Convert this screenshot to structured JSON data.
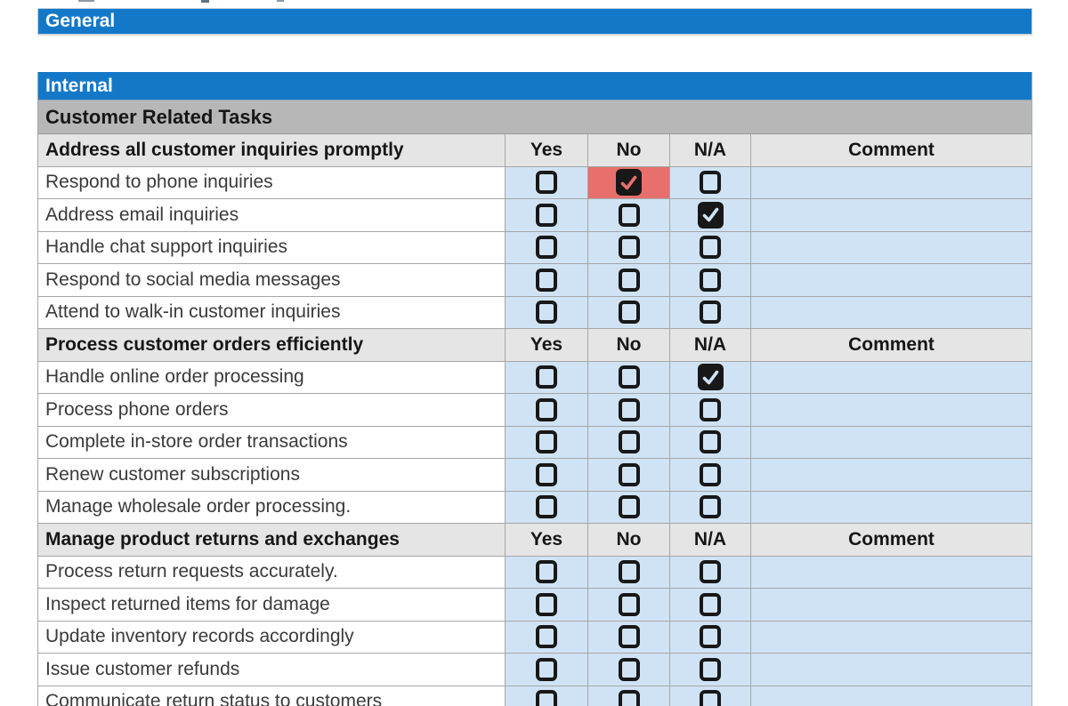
{
  "banners": {
    "general": "General",
    "internal": "Internal"
  },
  "section": {
    "subtitle": "Customer Related Tasks",
    "column_headers": {
      "yes": "Yes",
      "no": "No",
      "na": "N/A",
      "comment": "Comment"
    },
    "groups": [
      {
        "header": "Address all customer inquiries promptly",
        "tasks": [
          {
            "label": "Respond to phone inquiries",
            "checks": {
              "yes": false,
              "no": true,
              "na": false
            },
            "highlight": "no",
            "comment": ""
          },
          {
            "label": "Address email inquiries",
            "checks": {
              "yes": false,
              "no": false,
              "na": true
            },
            "highlight": null,
            "comment": ""
          },
          {
            "label": "Handle chat support inquiries",
            "checks": {
              "yes": false,
              "no": false,
              "na": false
            },
            "highlight": null,
            "comment": ""
          },
          {
            "label": "Respond to social media messages",
            "checks": {
              "yes": false,
              "no": false,
              "na": false
            },
            "highlight": null,
            "comment": ""
          },
          {
            "label": "Attend to walk-in customer inquiries",
            "checks": {
              "yes": false,
              "no": false,
              "na": false
            },
            "highlight": null,
            "comment": ""
          }
        ]
      },
      {
        "header": "Process customer orders efficiently",
        "tasks": [
          {
            "label": "Handle online order processing",
            "checks": {
              "yes": false,
              "no": false,
              "na": true
            },
            "highlight": null,
            "comment": ""
          },
          {
            "label": "Process phone orders",
            "checks": {
              "yes": false,
              "no": false,
              "na": false
            },
            "highlight": null,
            "comment": ""
          },
          {
            "label": "Complete in-store order transactions",
            "checks": {
              "yes": false,
              "no": false,
              "na": false
            },
            "highlight": null,
            "comment": ""
          },
          {
            "label": "Renew customer subscriptions",
            "checks": {
              "yes": false,
              "no": false,
              "na": false
            },
            "highlight": null,
            "comment": ""
          },
          {
            "label": "Manage wholesale order processing.",
            "checks": {
              "yes": false,
              "no": false,
              "na": false
            },
            "highlight": null,
            "comment": ""
          }
        ]
      },
      {
        "header": "Manage product returns and exchanges",
        "tasks": [
          {
            "label": "Process return requests accurately.",
            "checks": {
              "yes": false,
              "no": false,
              "na": false
            },
            "highlight": null,
            "comment": ""
          },
          {
            "label": "Inspect returned items for damage",
            "checks": {
              "yes": false,
              "no": false,
              "na": false
            },
            "highlight": null,
            "comment": ""
          },
          {
            "label": "Update inventory records accordingly",
            "checks": {
              "yes": false,
              "no": false,
              "na": false
            },
            "highlight": null,
            "comment": ""
          },
          {
            "label": "Issue customer refunds",
            "checks": {
              "yes": false,
              "no": false,
              "na": false
            },
            "highlight": null,
            "comment": ""
          },
          {
            "label": "Communicate return status to customers",
            "checks": {
              "yes": false,
              "no": false,
              "na": false
            },
            "highlight": null,
            "comment": ""
          }
        ]
      }
    ]
  },
  "colors": {
    "banner_blue": "#1478c8",
    "category_gray": "#b7b7b7",
    "header_row_gray": "#e5e5e5",
    "checkbox_cell_blue": "#cfe3f5",
    "highlight_red": "#e7706d",
    "checkbox_dark": "#181818"
  }
}
